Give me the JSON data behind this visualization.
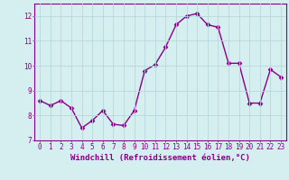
{
  "x": [
    0,
    1,
    2,
    3,
    4,
    5,
    6,
    7,
    8,
    9,
    10,
    11,
    12,
    13,
    14,
    15,
    16,
    17,
    18,
    19,
    20,
    21,
    22,
    23
  ],
  "y": [
    8.6,
    8.4,
    8.6,
    8.3,
    7.5,
    7.8,
    8.2,
    7.65,
    7.6,
    8.2,
    9.8,
    10.05,
    10.75,
    11.65,
    12.0,
    12.1,
    11.65,
    11.55,
    10.1,
    10.1,
    8.5,
    8.5,
    9.85,
    9.55
  ],
  "line_color": "#880088",
  "marker": "D",
  "marker_size": 2.5,
  "linewidth": 1.0,
  "xlabel": "Windchill (Refroidissement éolien,°C)",
  "xlabel_fontsize": 6.5,
  "ylim": [
    7,
    12.5
  ],
  "xlim": [
    -0.5,
    23.5
  ],
  "yticks": [
    7,
    8,
    9,
    10,
    11,
    12
  ],
  "xticks": [
    0,
    1,
    2,
    3,
    4,
    5,
    6,
    7,
    8,
    9,
    10,
    11,
    12,
    13,
    14,
    15,
    16,
    17,
    18,
    19,
    20,
    21,
    22,
    23
  ],
  "tick_fontsize": 5.5,
  "bg_color": "#d5eef0",
  "grid_color": "#b8d8dc",
  "tick_color": "#880088",
  "label_color": "#880088",
  "spine_color": "#880088"
}
